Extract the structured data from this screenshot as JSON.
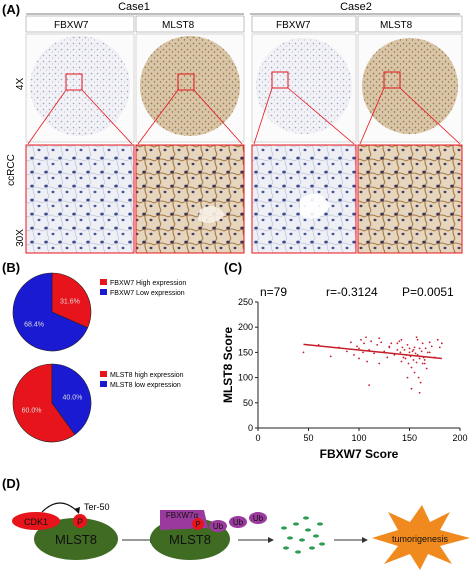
{
  "figure": {
    "panel_a": {
      "label": "(A)",
      "case1": "Case1",
      "case2": "Case2",
      "columns": [
        "FBXW7",
        "MLST8",
        "FBXW7",
        "MLST8"
      ],
      "row_group": "ccRCC",
      "row_4x": "4X",
      "row_30x": "30X"
    },
    "panel_b": {
      "label": "(B)",
      "pie1_legend": [
        "FBXW7 High expression",
        "FBXW7 Low expression"
      ],
      "pie2_legend": [
        "MLST8 high expression",
        "MLST8 low expression"
      ]
    },
    "panel_c": {
      "label": "(C)",
      "n_text": "n=79",
      "r_text": "r=-0.3124",
      "p_text": "P=0.0051"
    },
    "panel_d": {
      "label": "(D)",
      "cdk1": "CDK1",
      "ter": "Ter-50",
      "p": "P",
      "mlst8": "MLST8",
      "fbxw7a": "FBXW7α",
      "ub": "Ub",
      "tumorigenesis": "tumorigenesis"
    }
  },
  "colors": {
    "red": "#e8141c",
    "blue": "#1a1ad2",
    "olive": "#3f6b22",
    "purple": "#9b3a9e",
    "orange": "#f08a1e",
    "regression": "#c41e2a"
  },
  "chart_data": [
    {
      "type": "pie",
      "labels": [
        "FBXW7 High expression",
        "FBXW7 Low expression"
      ],
      "values": [
        31.6,
        68.4
      ],
      "value_labels": [
        "31.6%",
        "68.4%"
      ]
    },
    {
      "type": "pie",
      "labels": [
        "MLST8 high expression",
        "MLST8 low expression"
      ],
      "values": [
        60.0,
        40.0
      ],
      "value_labels": [
        "60.0%",
        "40.0%"
      ]
    },
    {
      "type": "scatter",
      "xlabel": "FBXW7 Score",
      "ylabel": "MLST8 Score",
      "xlim": [
        0,
        200
      ],
      "ylim": [
        0,
        250
      ],
      "xticks": [
        0,
        50,
        100,
        150,
        200
      ],
      "yticks": [
        0,
        50,
        100,
        150,
        200,
        250
      ],
      "x": [
        45,
        60,
        72,
        80,
        88,
        92,
        95,
        98,
        100,
        102,
        104,
        105,
        107,
        110,
        112,
        115,
        118,
        120,
        122,
        125,
        128,
        130,
        132,
        135,
        138,
        140,
        141,
        142,
        143,
        144,
        145,
        146,
        147,
        148,
        149,
        150,
        150,
        151,
        152,
        153,
        154,
        155,
        155,
        156,
        157,
        158,
        158,
        159,
        160,
        160,
        161,
        162,
        163,
        164,
        165,
        166,
        167,
        168,
        170,
        172,
        175,
        178,
        180,
        182,
        100,
        108,
        120,
        130,
        138,
        148,
        152,
        160,
        165,
        170,
        157,
        163,
        154,
        142,
        110
      ],
      "y": [
        150,
        165,
        142,
        160,
        152,
        170,
        145,
        162,
        138,
        175,
        150,
        168,
        180,
        155,
        172,
        148,
        165,
        178,
        170,
        152,
        140,
        160,
        168,
        145,
        155,
        172,
        150,
        132,
        160,
        140,
        155,
        138,
        145,
        165,
        128,
        150,
        158,
        142,
        120,
        152,
        135,
        110,
        160,
        148,
        130,
        145,
        175,
        100,
        158,
        138,
        90,
        152,
        168,
        140,
        128,
        158,
        118,
        150,
        170,
        162,
        140,
        175,
        160,
        168,
        158,
        132,
        128,
        162,
        168,
        100,
        78,
        70,
        135,
        150,
        180,
        128,
        155,
        175,
        85
      ],
      "fit_x": [
        45,
        182
      ],
      "fit_y": [
        166,
        138
      ],
      "annotations": [
        "n=79",
        "r=-0.3124",
        "P=0.0051"
      ]
    }
  ]
}
